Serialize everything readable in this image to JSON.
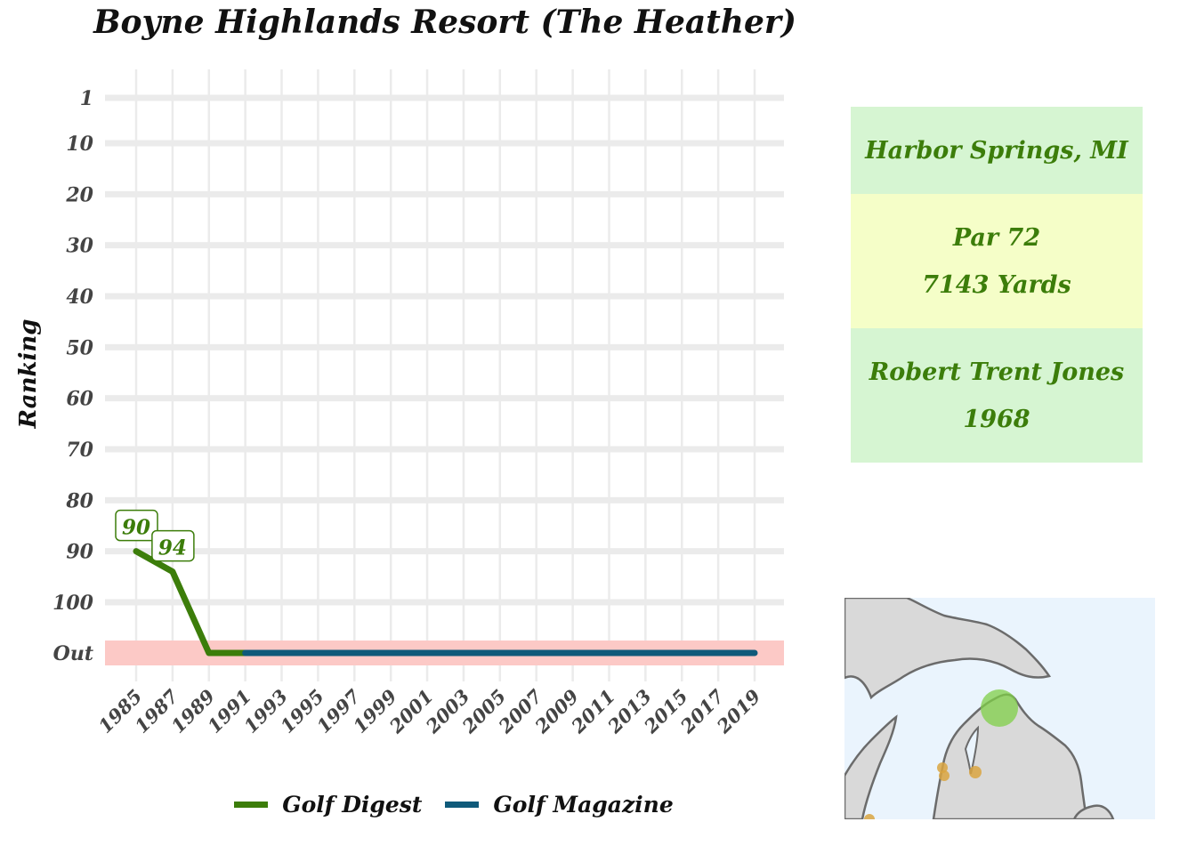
{
  "chart_data": {
    "type": "line",
    "title": "Boyne Highlands Resort (The Heather)",
    "ylabel": "Ranking",
    "xlabel": "",
    "x_ticks": [
      1985,
      1987,
      1989,
      1991,
      1993,
      1995,
      1997,
      1999,
      2001,
      2003,
      2005,
      2007,
      2009,
      2011,
      2013,
      2015,
      2017,
      2019
    ],
    "y_ticks": [
      "1",
      "10",
      "20",
      "30",
      "40",
      "50",
      "60",
      "70",
      "80",
      "90",
      "100",
      "Out"
    ],
    "xlim": [
      1985,
      2019
    ],
    "y_reversed": true,
    "out_band_color": "#fcc9c6",
    "grid": true,
    "legend_position": "bottom",
    "series": [
      {
        "name": "Golf Digest",
        "color": "#3c7d0a",
        "x": [
          1985,
          1987,
          1989,
          1991
        ],
        "y": [
          90,
          94,
          "Out",
          "Out"
        ],
        "labels": [
          {
            "x": 1985,
            "y": 90,
            "text": "90"
          },
          {
            "x": 1987,
            "y": 94,
            "text": "94"
          }
        ]
      },
      {
        "name": "Golf Magazine",
        "color": "#0f5a7a",
        "x": [
          1991,
          2019
        ],
        "y": [
          "Out",
          "Out"
        ]
      }
    ]
  },
  "info": {
    "location": "Harbor Springs, MI",
    "par": "Par 72",
    "yards": "7143 Yards",
    "designer": "Robert Trent Jones",
    "year": "1968",
    "text_color": "#3c7d0a"
  },
  "map": {
    "highlight_color": "#7fcf47",
    "other_courses_color": "#d9a441",
    "land_color": "#d9d9d9",
    "water_color": "#eaf4fd"
  }
}
